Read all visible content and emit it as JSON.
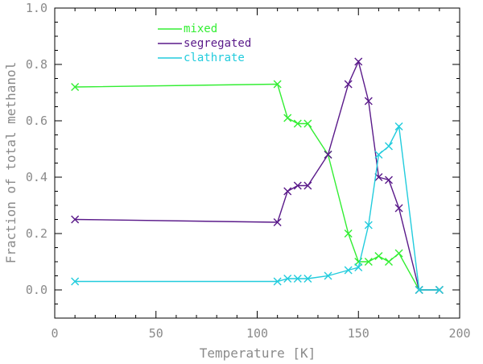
{
  "chart_data": {
    "type": "line",
    "title": "",
    "xlabel": "Temperature [K]",
    "ylabel": "Fraction of total methanol",
    "xlim": [
      0,
      200
    ],
    "ylim": [
      -0.1,
      1.0
    ],
    "x_ticks": [
      0,
      50,
      100,
      150,
      200
    ],
    "y_ticks": [
      0.0,
      0.2,
      0.4,
      0.6,
      0.8,
      1.0
    ],
    "x_tick_labels": [
      "0",
      "50",
      "100",
      "150",
      "200"
    ],
    "y_tick_labels": [
      "0.0",
      "0.2",
      "0.4",
      "0.6",
      "0.8",
      "1.0"
    ],
    "grid": false,
    "legend_position": "top-left",
    "marker": "x",
    "series": [
      {
        "name": "mixed",
        "color": "#33ee33",
        "x": [
          10,
          110,
          115,
          120,
          125,
          135,
          145,
          150,
          155,
          160,
          165,
          170,
          180,
          190
        ],
        "y": [
          0.72,
          0.73,
          0.61,
          0.59,
          0.59,
          0.48,
          0.2,
          0.1,
          0.1,
          0.12,
          0.1,
          0.13,
          0.0,
          0.0
        ]
      },
      {
        "name": "segregated",
        "color": "#5a1a8a",
        "x": [
          10,
          110,
          115,
          120,
          125,
          135,
          145,
          150,
          155,
          160,
          165,
          170,
          180,
          190
        ],
        "y": [
          0.25,
          0.24,
          0.35,
          0.37,
          0.37,
          0.48,
          0.73,
          0.81,
          0.67,
          0.4,
          0.39,
          0.29,
          0.0,
          0.0
        ]
      },
      {
        "name": "clathrate",
        "color": "#22ccdd",
        "x": [
          10,
          110,
          115,
          120,
          125,
          135,
          145,
          150,
          155,
          160,
          165,
          170,
          180,
          190
        ],
        "y": [
          0.03,
          0.03,
          0.04,
          0.04,
          0.04,
          0.05,
          0.07,
          0.08,
          0.23,
          0.48,
          0.51,
          0.58,
          0.0,
          0.0
        ]
      }
    ]
  }
}
